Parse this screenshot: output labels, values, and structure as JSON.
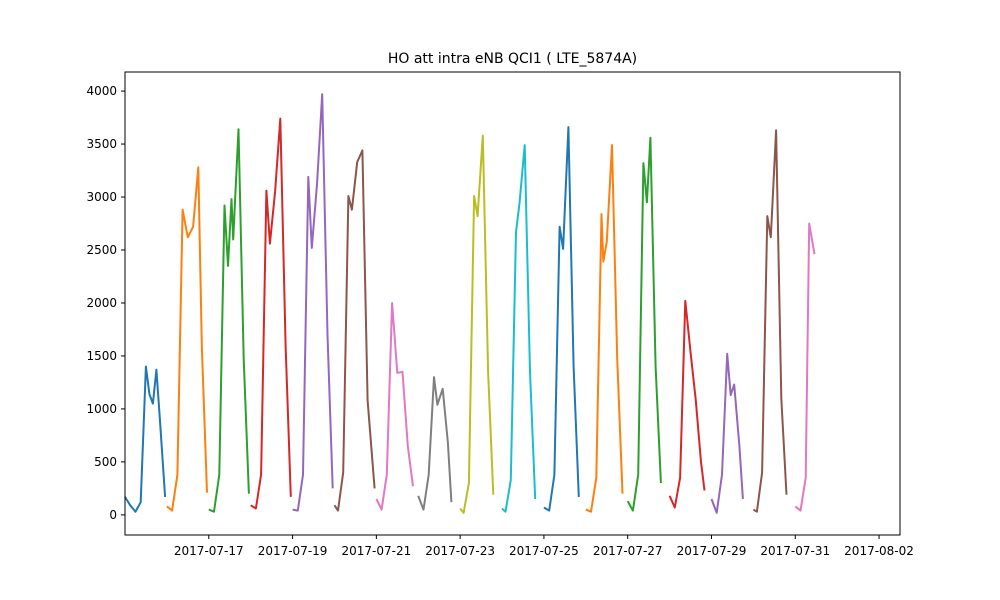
{
  "chart_data": {
    "type": "line",
    "title": "HO att intra eNB QCI1 ( LTE_5874A)",
    "xlabel": "",
    "ylabel": "",
    "x_range": [
      "2017-07-15T00:00",
      "2017-08-02T12:00"
    ],
    "ylim": [
      -190,
      4180
    ],
    "yticks": [
      0,
      500,
      1000,
      1500,
      2000,
      2500,
      3000,
      3500,
      4000
    ],
    "xticks": [
      "2017-07-17",
      "2017-07-19",
      "2017-07-21",
      "2017-07-23",
      "2017-07-25",
      "2017-07-27",
      "2017-07-29",
      "2017-07-31",
      "2017-08-02"
    ],
    "grid": false,
    "legend": "none",
    "series": [
      {
        "color": "#1f77b4",
        "points": [
          [
            "2017-07-15T00:00",
            170
          ],
          [
            "2017-07-15T03:00",
            90
          ],
          [
            "2017-07-15T06:00",
            30
          ],
          [
            "2017-07-15T09:00",
            120
          ],
          [
            "2017-07-15T12:00",
            1400
          ],
          [
            "2017-07-15T14:00",
            1140
          ],
          [
            "2017-07-15T16:00",
            1050
          ],
          [
            "2017-07-15T18:00",
            1370
          ],
          [
            "2017-07-15T20:00",
            900
          ],
          [
            "2017-07-15T23:00",
            170
          ]
        ]
      },
      {
        "color": "#ff7f0e",
        "points": [
          [
            "2017-07-16T00:00",
            80
          ],
          [
            "2017-07-16T03:00",
            40
          ],
          [
            "2017-07-16T06:00",
            380
          ],
          [
            "2017-07-16T09:00",
            2880
          ],
          [
            "2017-07-16T12:00",
            2620
          ],
          [
            "2017-07-16T15:00",
            2720
          ],
          [
            "2017-07-16T18:00",
            3280
          ],
          [
            "2017-07-16T20:00",
            1600
          ],
          [
            "2017-07-16T23:00",
            210
          ]
        ]
      },
      {
        "color": "#2ca02c",
        "points": [
          [
            "2017-07-17T00:00",
            50
          ],
          [
            "2017-07-17T03:00",
            30
          ],
          [
            "2017-07-17T06:00",
            380
          ],
          [
            "2017-07-17T09:00",
            2920
          ],
          [
            "2017-07-17T11:00",
            2350
          ],
          [
            "2017-07-17T13:00",
            2980
          ],
          [
            "2017-07-17T14:00",
            2600
          ],
          [
            "2017-07-17T17:00",
            3640
          ],
          [
            "2017-07-17T20:00",
            1470
          ],
          [
            "2017-07-17T23:00",
            200
          ]
        ]
      },
      {
        "color": "#d62728",
        "points": [
          [
            "2017-07-18T00:00",
            90
          ],
          [
            "2017-07-18T03:00",
            60
          ],
          [
            "2017-07-18T06:00",
            380
          ],
          [
            "2017-07-18T09:00",
            3060
          ],
          [
            "2017-07-18T11:00",
            2560
          ],
          [
            "2017-07-18T14:00",
            3050
          ],
          [
            "2017-07-18T17:00",
            3740
          ],
          [
            "2017-07-18T20:00",
            1600
          ],
          [
            "2017-07-18T23:00",
            170
          ]
        ]
      },
      {
        "color": "#9467bd",
        "points": [
          [
            "2017-07-19T00:00",
            50
          ],
          [
            "2017-07-19T03:00",
            40
          ],
          [
            "2017-07-19T06:00",
            380
          ],
          [
            "2017-07-19T09:00",
            3190
          ],
          [
            "2017-07-19T11:00",
            2520
          ],
          [
            "2017-07-19T14:00",
            3120
          ],
          [
            "2017-07-19T17:00",
            3970
          ],
          [
            "2017-07-19T20:00",
            1700
          ],
          [
            "2017-07-19T23:00",
            250
          ]
        ]
      },
      {
        "color": "#8c564b",
        "points": [
          [
            "2017-07-20T00:00",
            90
          ],
          [
            "2017-07-20T02:00",
            40
          ],
          [
            "2017-07-20T05:00",
            400
          ],
          [
            "2017-07-20T08:00",
            3010
          ],
          [
            "2017-07-20T10:00",
            2880
          ],
          [
            "2017-07-20T13:00",
            3330
          ],
          [
            "2017-07-20T16:00",
            3440
          ],
          [
            "2017-07-20T19:00",
            1080
          ],
          [
            "2017-07-20T23:00",
            250
          ]
        ]
      },
      {
        "color": "#e377c2",
        "points": [
          [
            "2017-07-21T00:00",
            150
          ],
          [
            "2017-07-21T03:00",
            50
          ],
          [
            "2017-07-21T06:00",
            380
          ],
          [
            "2017-07-21T09:00",
            2000
          ],
          [
            "2017-07-21T12:00",
            1340
          ],
          [
            "2017-07-21T15:00",
            1350
          ],
          [
            "2017-07-21T18:00",
            650
          ],
          [
            "2017-07-21T21:00",
            270
          ]
        ]
      },
      {
        "color": "#7f7f7f",
        "points": [
          [
            "2017-07-22T00:00",
            180
          ],
          [
            "2017-07-22T03:00",
            50
          ],
          [
            "2017-07-22T06:00",
            380
          ],
          [
            "2017-07-22T09:00",
            1300
          ],
          [
            "2017-07-22T11:00",
            1040
          ],
          [
            "2017-07-22T14:00",
            1190
          ],
          [
            "2017-07-22T17:00",
            680
          ],
          [
            "2017-07-22T19:00",
            120
          ]
        ]
      },
      {
        "color": "#bcbd22",
        "points": [
          [
            "2017-07-23T00:00",
            60
          ],
          [
            "2017-07-23T02:00",
            20
          ],
          [
            "2017-07-23T05:00",
            300
          ],
          [
            "2017-07-23T08:00",
            3010
          ],
          [
            "2017-07-23T10:00",
            2820
          ],
          [
            "2017-07-23T13:00",
            3580
          ],
          [
            "2017-07-23T16:00",
            1350
          ],
          [
            "2017-07-23T19:00",
            190
          ]
        ]
      },
      {
        "color": "#17becf",
        "points": [
          [
            "2017-07-24T00:00",
            60
          ],
          [
            "2017-07-24T02:00",
            30
          ],
          [
            "2017-07-24T05:00",
            330
          ],
          [
            "2017-07-24T08:00",
            2670
          ],
          [
            "2017-07-24T10:00",
            2940
          ],
          [
            "2017-07-24T13:00",
            3490
          ],
          [
            "2017-07-24T16:00",
            1350
          ],
          [
            "2017-07-24T19:00",
            150
          ]
        ]
      },
      {
        "color": "#1f77b4",
        "points": [
          [
            "2017-07-25T00:00",
            70
          ],
          [
            "2017-07-25T03:00",
            40
          ],
          [
            "2017-07-25T06:00",
            380
          ],
          [
            "2017-07-25T09:00",
            2720
          ],
          [
            "2017-07-25T11:00",
            2510
          ],
          [
            "2017-07-25T14:00",
            3660
          ],
          [
            "2017-07-25T17:00",
            1400
          ],
          [
            "2017-07-25T20:00",
            170
          ]
        ]
      },
      {
        "color": "#ff7f0e",
        "points": [
          [
            "2017-07-26T00:00",
            50
          ],
          [
            "2017-07-26T03:00",
            30
          ],
          [
            "2017-07-26T06:00",
            350
          ],
          [
            "2017-07-26T09:00",
            2840
          ],
          [
            "2017-07-26T10:00",
            2390
          ],
          [
            "2017-07-26T12:00",
            2580
          ],
          [
            "2017-07-26T15:00",
            3490
          ],
          [
            "2017-07-26T18:00",
            1480
          ],
          [
            "2017-07-26T21:00",
            200
          ]
        ]
      },
      {
        "color": "#2ca02c",
        "points": [
          [
            "2017-07-27T00:00",
            130
          ],
          [
            "2017-07-27T03:00",
            40
          ],
          [
            "2017-07-27T06:00",
            380
          ],
          [
            "2017-07-27T09:00",
            3320
          ],
          [
            "2017-07-27T11:00",
            2950
          ],
          [
            "2017-07-27T13:00",
            3560
          ],
          [
            "2017-07-27T16:00",
            1400
          ],
          [
            "2017-07-27T19:00",
            300
          ]
        ]
      },
      {
        "color": "#d62728",
        "points": [
          [
            "2017-07-28T00:00",
            180
          ],
          [
            "2017-07-28T03:00",
            70
          ],
          [
            "2017-07-28T06:00",
            350
          ],
          [
            "2017-07-28T09:00",
            2020
          ],
          [
            "2017-07-28T12:00",
            1540
          ],
          [
            "2017-07-28T15:00",
            1080
          ],
          [
            "2017-07-28T18:00",
            500
          ],
          [
            "2017-07-28T20:00",
            230
          ]
        ]
      },
      {
        "color": "#9467bd",
        "points": [
          [
            "2017-07-29T00:00",
            150
          ],
          [
            "2017-07-29T03:00",
            20
          ],
          [
            "2017-07-29T06:00",
            380
          ],
          [
            "2017-07-29T09:00",
            1520
          ],
          [
            "2017-07-29T11:00",
            1130
          ],
          [
            "2017-07-29T13:00",
            1230
          ],
          [
            "2017-07-29T16:00",
            650
          ],
          [
            "2017-07-29T18:00",
            150
          ]
        ]
      },
      {
        "color": "#8c564b",
        "points": [
          [
            "2017-07-30T00:00",
            50
          ],
          [
            "2017-07-30T02:00",
            30
          ],
          [
            "2017-07-30T05:00",
            400
          ],
          [
            "2017-07-30T08:00",
            2820
          ],
          [
            "2017-07-30T10:00",
            2620
          ],
          [
            "2017-07-30T13:00",
            3630
          ],
          [
            "2017-07-30T16:00",
            1100
          ],
          [
            "2017-07-30T19:00",
            190
          ]
        ]
      },
      {
        "color": "#e377c2",
        "points": [
          [
            "2017-07-31T00:00",
            80
          ],
          [
            "2017-07-31T03:00",
            40
          ],
          [
            "2017-07-31T06:00",
            350
          ],
          [
            "2017-07-31T08:00",
            2750
          ],
          [
            "2017-07-31T11:00",
            2460
          ]
        ]
      }
    ]
  }
}
